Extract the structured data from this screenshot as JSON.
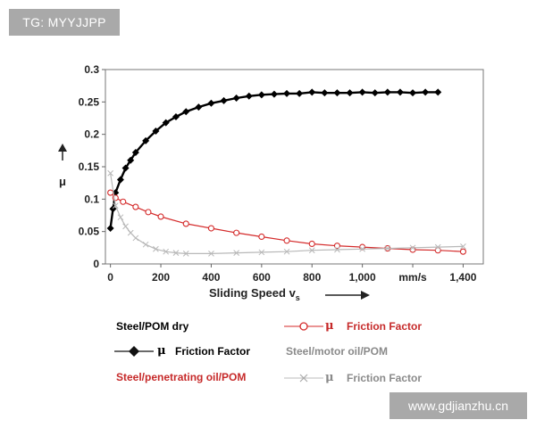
{
  "watermark_left": "TG: MYYJJPP",
  "watermark_right": "www.gdjianzhu.cn",
  "chart_data": {
    "type": "scatter",
    "xlabel": "Sliding Speed v",
    "xlabel_sub": "s",
    "xunit": "mm/s",
    "ylabel": "μ",
    "xlim": [
      -20,
      1480
    ],
    "ylim": [
      0,
      0.3
    ],
    "xticks": [
      0,
      200,
      400,
      600,
      800,
      1000,
      1200,
      1400
    ],
    "xtick_labels": [
      "0",
      "200",
      "400",
      "600",
      "800",
      "1,000",
      "1,200",
      "1,400"
    ],
    "yticks": [
      0,
      0.05,
      0.1,
      0.15,
      0.2,
      0.25,
      0.3
    ],
    "ytick_labels": [
      "0",
      "0.05",
      "0.1",
      "0.15",
      "0.2",
      "0.25",
      "0.3"
    ],
    "series": [
      {
        "name": "Steel/POM dry",
        "color": "#000000",
        "marker": "diamond",
        "x": [
          0,
          10,
          20,
          40,
          60,
          80,
          100,
          140,
          180,
          220,
          260,
          300,
          350,
          400,
          450,
          500,
          550,
          600,
          650,
          700,
          750,
          800,
          850,
          900,
          950,
          1000,
          1050,
          1100,
          1150,
          1200,
          1250,
          1300
        ],
        "y": [
          0.055,
          0.085,
          0.11,
          0.13,
          0.148,
          0.16,
          0.172,
          0.19,
          0.205,
          0.218,
          0.227,
          0.235,
          0.242,
          0.248,
          0.252,
          0.256,
          0.259,
          0.261,
          0.262,
          0.263,
          0.263,
          0.265,
          0.264,
          0.264,
          0.264,
          0.265,
          0.264,
          0.265,
          0.265,
          0.264,
          0.265,
          0.265
        ]
      },
      {
        "name": "Steel/penetrating oil/POM",
        "color": "#d42a2a",
        "marker": "circle",
        "x": [
          0,
          20,
          50,
          100,
          150,
          200,
          300,
          400,
          500,
          600,
          700,
          800,
          900,
          1000,
          1100,
          1200,
          1300,
          1400
        ],
        "y": [
          0.11,
          0.102,
          0.096,
          0.088,
          0.08,
          0.073,
          0.062,
          0.055,
          0.048,
          0.042,
          0.036,
          0.031,
          0.028,
          0.026,
          0.024,
          0.022,
          0.021,
          0.019
        ]
      },
      {
        "name": "Steel/motor oil/POM",
        "color": "#b8b8b8",
        "marker": "cross",
        "x": [
          0,
          20,
          40,
          60,
          80,
          100,
          140,
          180,
          220,
          260,
          300,
          400,
          500,
          600,
          700,
          800,
          900,
          1000,
          1100,
          1200,
          1300,
          1400
        ],
        "y": [
          0.14,
          0.09,
          0.072,
          0.058,
          0.048,
          0.04,
          0.03,
          0.023,
          0.019,
          0.017,
          0.016,
          0.016,
          0.017,
          0.018,
          0.019,
          0.021,
          0.022,
          0.023,
          0.024,
          0.025,
          0.026,
          0.027
        ]
      }
    ],
    "legend": [
      {
        "label": "Steel/POM dry",
        "color": "#111111",
        "marker": ""
      },
      {
        "symbol": "μ",
        "label": "Friction Factor",
        "color": "#111111",
        "marker": "diamond"
      },
      {
        "label": "Steel/penetrating oil/POM",
        "color": "#c62a2a",
        "marker": ""
      },
      {
        "symbol": "μ",
        "label": "Friction Factor",
        "color": "#c62a2a",
        "marker": "circle"
      },
      {
        "label": "Steel/motor oil/POM",
        "color": "#8a8a8a",
        "marker": ""
      },
      {
        "symbol": "μ",
        "label": "Friction Factor",
        "color": "#8a8a8a",
        "marker": "cross"
      }
    ]
  }
}
